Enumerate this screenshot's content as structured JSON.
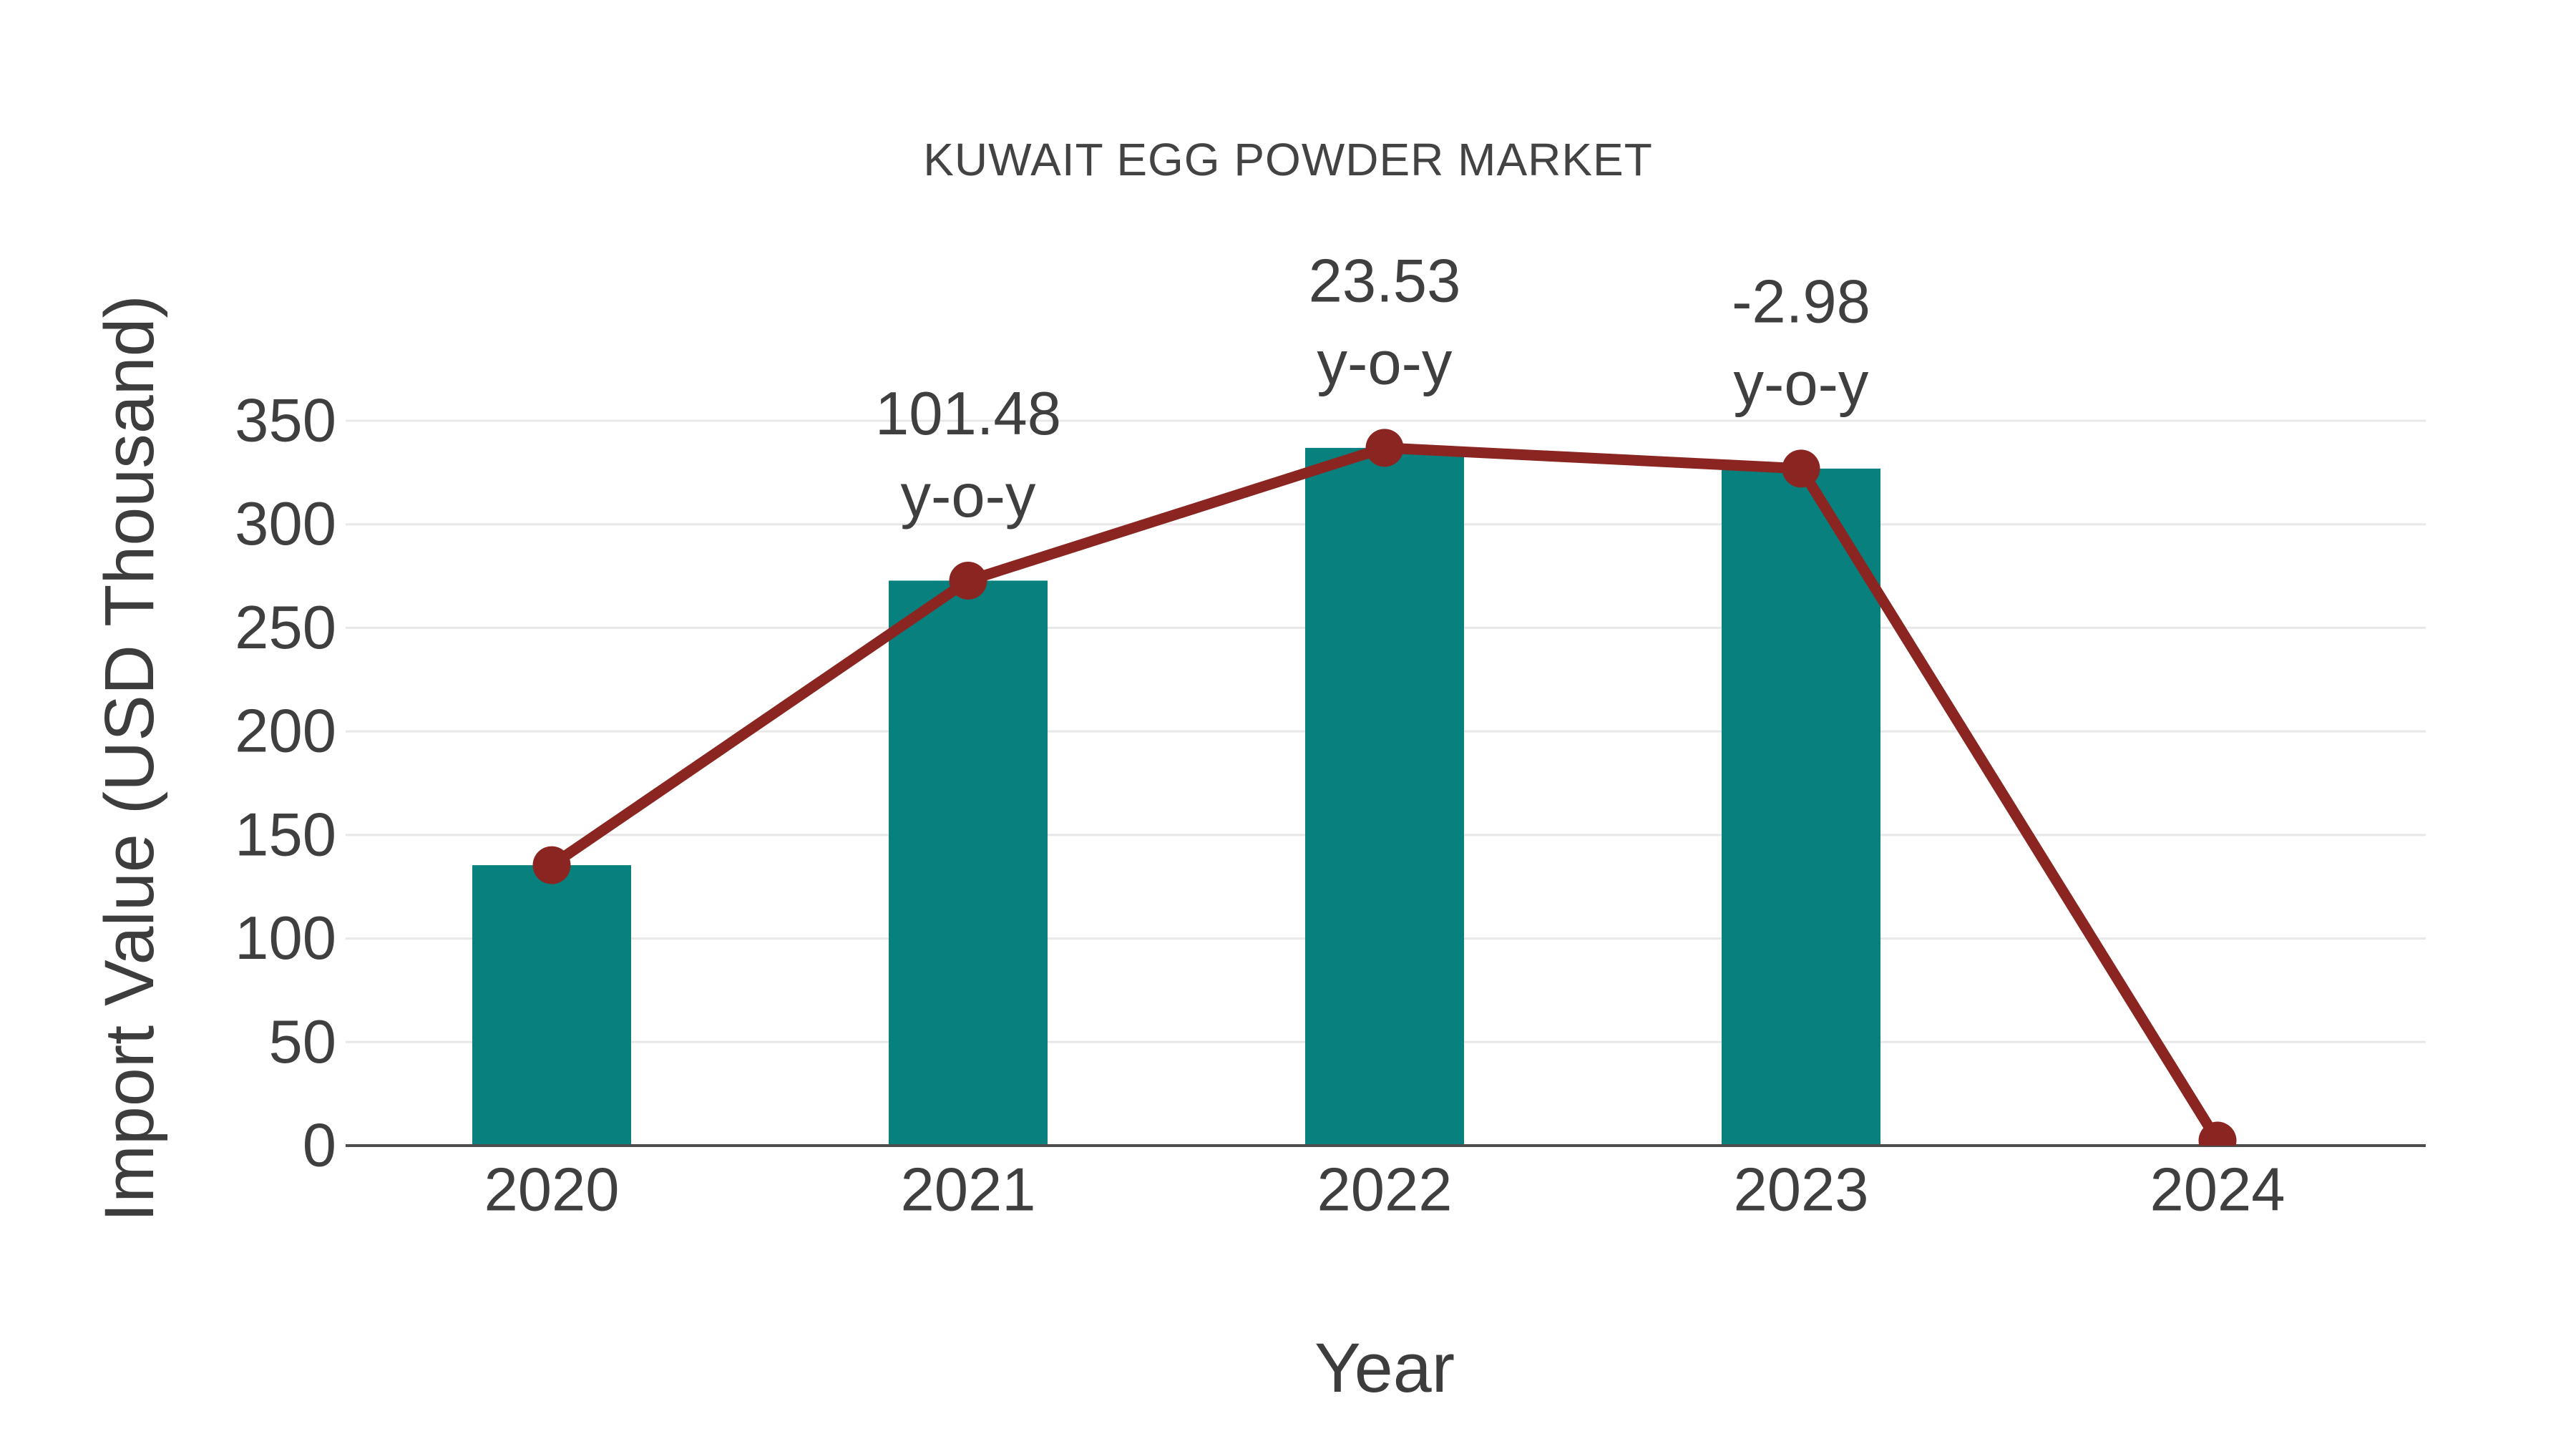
{
  "chart_data": {
    "type": "bar+line",
    "title": "KUWAIT EGG POWDER MARKET",
    "xlabel": "Year",
    "ylabel": "Import Value (USD Thousand)",
    "categories": [
      "2020",
      "2021",
      "2022",
      "2023",
      "2024"
    ],
    "series": [
      {
        "name": "Import Value bars",
        "type": "bar",
        "color": "#08807e",
        "values": [
          135.4,
          272.8,
          336.9,
          326.9,
          null
        ]
      },
      {
        "name": "Import Value trend line",
        "type": "line",
        "color": "#8b2521",
        "values": [
          135.4,
          272.8,
          336.9,
          326.9,
          2.4
        ]
      }
    ],
    "annotations": [
      {
        "category": "2021",
        "label": "101.48",
        "sublabel": "y-o-y"
      },
      {
        "category": "2022",
        "label": "23.53",
        "sublabel": "y-o-y"
      },
      {
        "category": "2023",
        "label": "-2.98",
        "sublabel": "y-o-y"
      }
    ],
    "ylim": [
      0,
      350
    ],
    "yticks": [
      0,
      50,
      100,
      150,
      200,
      250,
      300,
      350
    ],
    "grid": true,
    "legend": false,
    "colors": {
      "bar": "#08807e",
      "line": "#8b2521",
      "marker": "#8b2521",
      "text": "#3f3f3f",
      "grid_line": "#e8e8e8",
      "axis_line": "#4d4d4d",
      "title_text": "#434343"
    }
  }
}
